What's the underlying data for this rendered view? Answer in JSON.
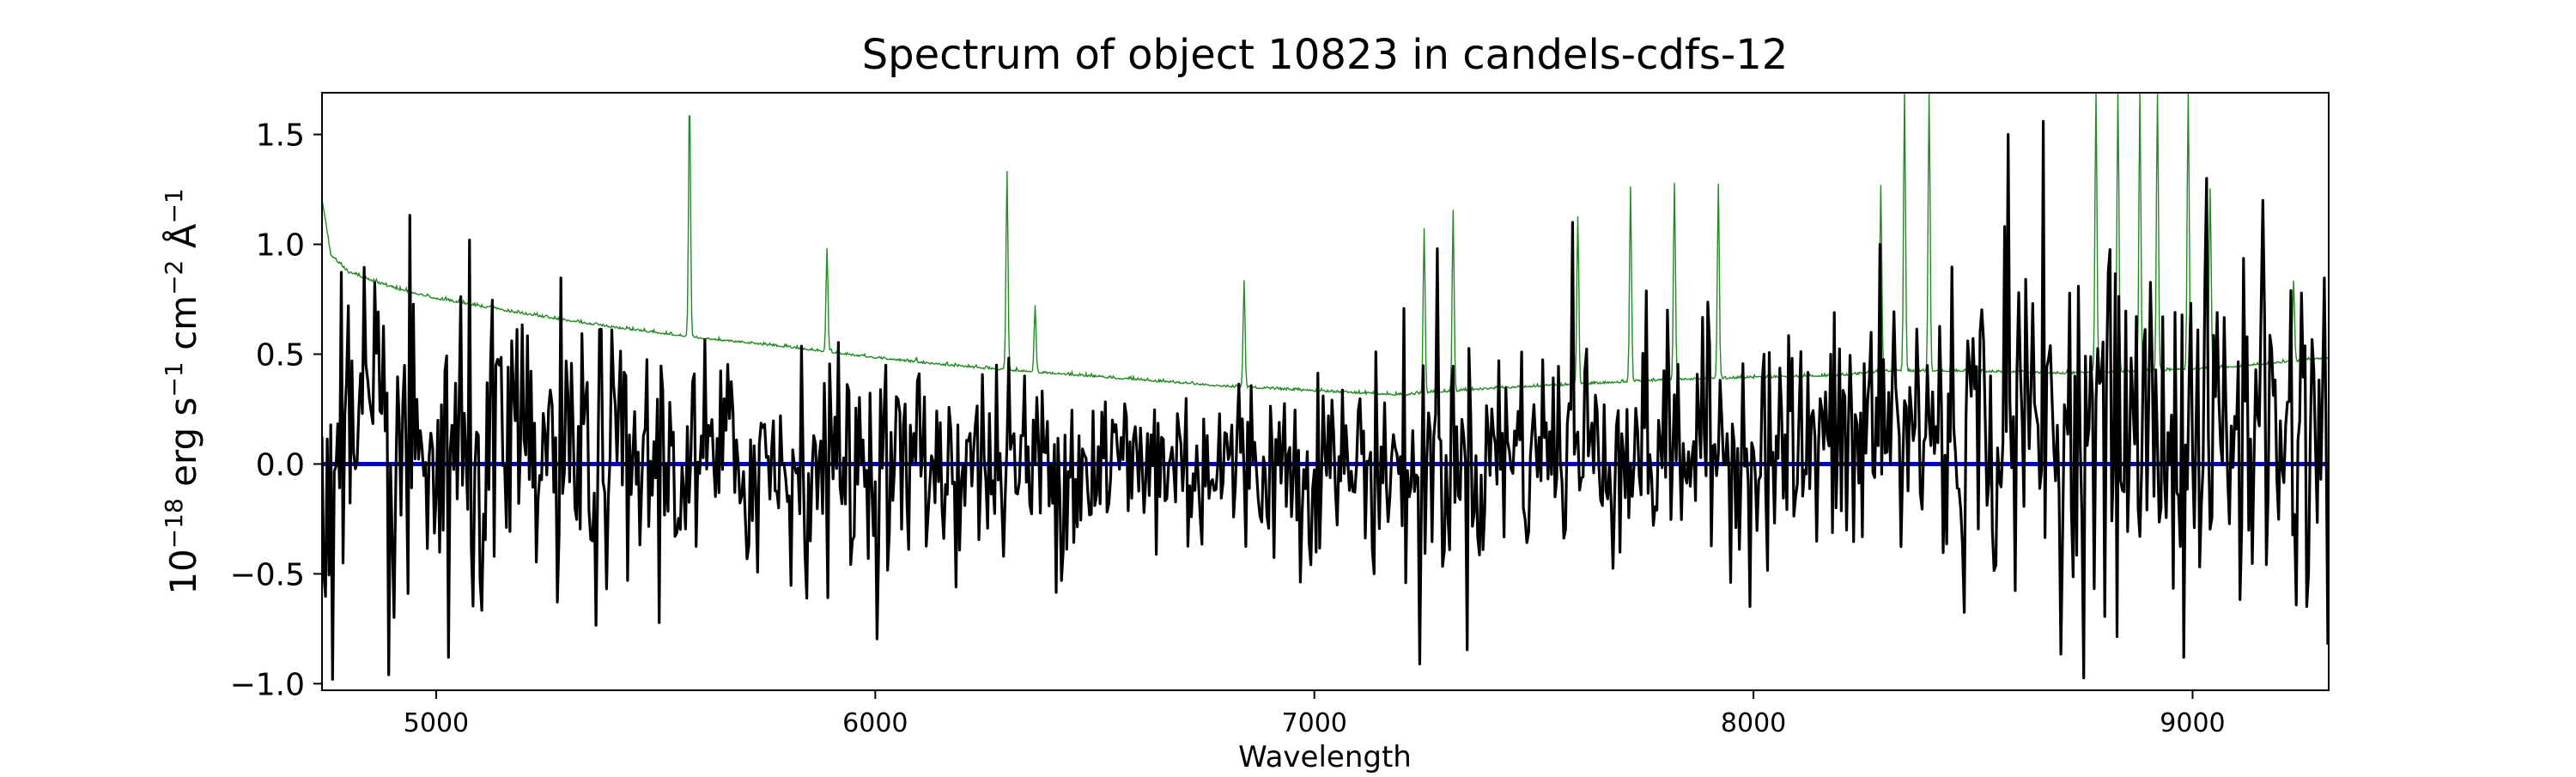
{
  "chart_data": {
    "type": "line",
    "title": "Spectrum of object 10823 in candels-cdfs-12",
    "xlabel": "Wavelength",
    "ylabel_parts": {
      "base": "10",
      "base_exp": "−18",
      "erg": " erg s",
      "s_exp": "−1",
      "cm": " cm",
      "cm_exp": "−2",
      "angstrom": " Å",
      "a_exp": "−1"
    },
    "xlim": [
      4740,
      9310
    ],
    "ylim": [
      -1.03,
      1.69
    ],
    "xticks": [
      5000,
      6000,
      7000,
      8000,
      9000
    ],
    "xtick_labels": [
      "5000",
      "6000",
      "7000",
      "8000",
      "9000"
    ],
    "yticks": [
      -1.0,
      -0.5,
      0.0,
      0.5,
      1.0,
      1.5
    ],
    "ytick_labels": [
      "−1.0",
      "−0.5",
      "0.0",
      "0.5",
      "1.0",
      "1.5"
    ],
    "grid": false,
    "colors": {
      "flux": "#000000",
      "error": "#228B22",
      "model": "#0000CC"
    },
    "series": [
      {
        "key": "model",
        "x": [
          4740,
          9310
        ],
        "y": [
          0.0,
          0.0
        ]
      },
      {
        "key": "error",
        "continuum": {
          "x": [
            4740,
            4760,
            4800,
            4900,
            5000,
            5200,
            5400,
            5600,
            5800,
            6000,
            6200,
            6400,
            6600,
            6800,
            7000,
            7200,
            7250,
            7400,
            7600,
            7800,
            8000,
            8200,
            8300,
            8500,
            8700,
            8900,
            9100,
            9310
          ],
          "y": [
            1.2,
            0.95,
            0.87,
            0.8,
            0.75,
            0.68,
            0.62,
            0.57,
            0.53,
            0.48,
            0.44,
            0.41,
            0.38,
            0.35,
            0.33,
            0.31,
            0.32,
            0.34,
            0.36,
            0.38,
            0.39,
            0.4,
            0.42,
            0.42,
            0.41,
            0.42,
            0.44,
            0.48
          ]
        },
        "peaks": [
          {
            "x": 5577,
            "y": 1.69
          },
          {
            "x": 5890,
            "y": 0.98
          },
          {
            "x": 6300,
            "y": 1.33
          },
          {
            "x": 6364,
            "y": 0.72
          },
          {
            "x": 6840,
            "y": 0.83
          },
          {
            "x": 7250,
            "y": 1.06
          },
          {
            "x": 7316,
            "y": 1.15
          },
          {
            "x": 7600,
            "y": 1.12
          },
          {
            "x": 7720,
            "y": 1.26
          },
          {
            "x": 7820,
            "y": 1.28
          },
          {
            "x": 7920,
            "y": 1.27
          },
          {
            "x": 8290,
            "y": 1.27
          },
          {
            "x": 8344,
            "y": 1.69
          },
          {
            "x": 8400,
            "y": 1.69
          },
          {
            "x": 8780,
            "y": 1.69
          },
          {
            "x": 8830,
            "y": 1.69
          },
          {
            "x": 8880,
            "y": 1.69
          },
          {
            "x": 8920,
            "y": 1.69
          },
          {
            "x": 8990,
            "y": 1.69
          },
          {
            "x": 9040,
            "y": 1.25
          },
          {
            "x": 9230,
            "y": 0.83
          }
        ]
      },
      {
        "key": "flux",
        "approx_sigma_anchors": {
          "x": [
            4740,
            5000,
            5500,
            6000,
            6500,
            7000,
            7200,
            7400,
            7800,
            8200,
            8300,
            8600,
            9000,
            9310
          ],
          "y": [
            0.45,
            0.38,
            0.28,
            0.24,
            0.22,
            0.21,
            0.25,
            0.25,
            0.26,
            0.28,
            0.35,
            0.35,
            0.42,
            0.4
          ]
        },
        "notable_points": [
          {
            "x": 4800,
            "y": 0.72
          },
          {
            "x": 5030,
            "y": -0.88
          },
          {
            "x": 7240,
            "y": -0.91
          },
          {
            "x": 7280,
            "y": 0.98
          },
          {
            "x": 7590,
            "y": 1.1
          },
          {
            "x": 8290,
            "y": 1.0
          },
          {
            "x": 8580,
            "y": 1.5
          },
          {
            "x": 8660,
            "y": 1.56
          },
          {
            "x": 8980,
            "y": -0.88
          },
          {
            "x": 9160,
            "y": 1.2
          }
        ]
      }
    ]
  }
}
